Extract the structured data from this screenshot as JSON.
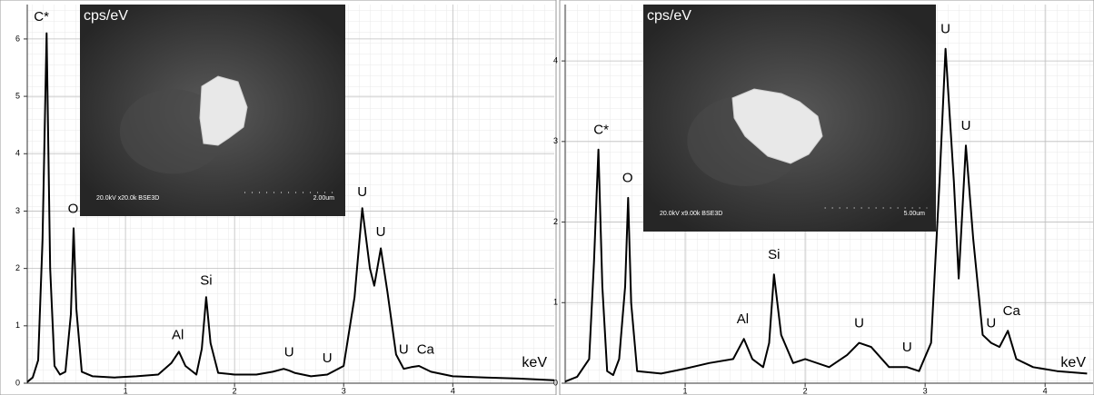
{
  "chart_data": [
    {
      "type": "line",
      "ylabel": "cps/eV",
      "xlabel": "keV",
      "color": "#000000",
      "grid": true,
      "xlim": [
        0.1,
        4.93
      ],
      "ylim": [
        0,
        6.6
      ],
      "xticks": [
        1,
        2,
        3,
        4
      ],
      "yticks": [
        0,
        1,
        2,
        3,
        4,
        5,
        6
      ],
      "x": [
        0.1,
        0.15,
        0.2,
        0.24,
        0.277,
        0.31,
        0.35,
        0.4,
        0.45,
        0.5,
        0.525,
        0.55,
        0.6,
        0.7,
        0.9,
        1.1,
        1.3,
        1.42,
        1.49,
        1.55,
        1.65,
        1.7,
        1.74,
        1.78,
        1.85,
        2.0,
        2.2,
        2.35,
        2.45,
        2.5,
        2.55,
        2.7,
        2.85,
        3.0,
        3.1,
        3.17,
        3.24,
        3.28,
        3.34,
        3.4,
        3.48,
        3.55,
        3.62,
        3.69,
        3.8,
        4.0,
        4.3,
        4.6,
        4.93
      ],
      "values": [
        0.02,
        0.1,
        0.4,
        2.5,
        6.1,
        2.0,
        0.3,
        0.15,
        0.2,
        1.2,
        2.7,
        1.3,
        0.2,
        0.12,
        0.1,
        0.12,
        0.15,
        0.35,
        0.55,
        0.3,
        0.15,
        0.6,
        1.5,
        0.7,
        0.18,
        0.15,
        0.15,
        0.2,
        0.25,
        0.22,
        0.18,
        0.12,
        0.15,
        0.3,
        1.5,
        3.05,
        2.0,
        1.7,
        2.35,
        1.6,
        0.5,
        0.25,
        0.28,
        0.3,
        0.2,
        0.12,
        0.1,
        0.08,
        0.05
      ],
      "annotations": [
        {
          "text": "C*",
          "x": 0.23,
          "y": 6.25
        },
        {
          "text": "O",
          "x": 0.52,
          "y": 2.9
        },
        {
          "text": "Al",
          "x": 1.48,
          "y": 0.7
        },
        {
          "text": "Si",
          "x": 1.74,
          "y": 1.65
        },
        {
          "text": "U",
          "x": 2.5,
          "y": 0.4
        },
        {
          "text": "U",
          "x": 2.85,
          "y": 0.3
        },
        {
          "text": "U",
          "x": 3.17,
          "y": 3.2
        },
        {
          "text": "U",
          "x": 3.34,
          "y": 2.5
        },
        {
          "text": "U",
          "x": 3.55,
          "y": 0.45
        },
        {
          "text": "Ca",
          "x": 3.75,
          "y": 0.45
        }
      ],
      "inset": {
        "caption": "20.0kV x20.0k BSE3D",
        "scale": "2.00um"
      }
    },
    {
      "type": "line",
      "ylabel": "cps/eV",
      "xlabel": "keV",
      "color": "#000000",
      "grid": true,
      "xlim": [
        0,
        4.4
      ],
      "ylim": [
        0,
        4.7
      ],
      "xticks": [
        1,
        2,
        3,
        4
      ],
      "yticks": [
        0,
        1,
        2,
        3,
        4
      ],
      "x": [
        0,
        0.1,
        0.2,
        0.24,
        0.277,
        0.31,
        0.35,
        0.4,
        0.45,
        0.5,
        0.525,
        0.55,
        0.6,
        0.8,
        1.0,
        1.2,
        1.4,
        1.49,
        1.56,
        1.65,
        1.7,
        1.74,
        1.8,
        1.9,
        2.0,
        2.2,
        2.35,
        2.45,
        2.55,
        2.7,
        2.85,
        2.95,
        3.05,
        3.12,
        3.17,
        3.24,
        3.28,
        3.34,
        3.4,
        3.48,
        3.55,
        3.62,
        3.69,
        3.76,
        3.9,
        4.1,
        4.35
      ],
      "values": [
        0.02,
        0.08,
        0.3,
        1.5,
        2.9,
        1.2,
        0.15,
        0.1,
        0.3,
        1.2,
        2.3,
        1.0,
        0.15,
        0.12,
        0.18,
        0.25,
        0.3,
        0.55,
        0.3,
        0.2,
        0.5,
        1.35,
        0.6,
        0.25,
        0.3,
        0.2,
        0.35,
        0.5,
        0.45,
        0.2,
        0.2,
        0.15,
        0.5,
        2.5,
        4.15,
        2.5,
        1.3,
        2.95,
        1.8,
        0.6,
        0.5,
        0.45,
        0.65,
        0.3,
        0.2,
        0.15,
        0.12
      ],
      "annotations": [
        {
          "text": "C*",
          "x": 0.3,
          "y": 3.05
        },
        {
          "text": "O",
          "x": 0.52,
          "y": 2.45
        },
        {
          "text": "Al",
          "x": 1.48,
          "y": 0.7
        },
        {
          "text": "Si",
          "x": 1.74,
          "y": 1.5
        },
        {
          "text": "U",
          "x": 2.45,
          "y": 0.65
        },
        {
          "text": "U",
          "x": 2.85,
          "y": 0.35
        },
        {
          "text": "U",
          "x": 3.17,
          "y": 4.3
        },
        {
          "text": "U",
          "x": 3.34,
          "y": 3.1
        },
        {
          "text": "U",
          "x": 3.55,
          "y": 0.65
        },
        {
          "text": "Ca",
          "x": 3.72,
          "y": 0.8
        }
      ],
      "inset": {
        "caption": "20.0kV x9.00k BSE3D",
        "scale": "5.00um"
      }
    }
  ]
}
